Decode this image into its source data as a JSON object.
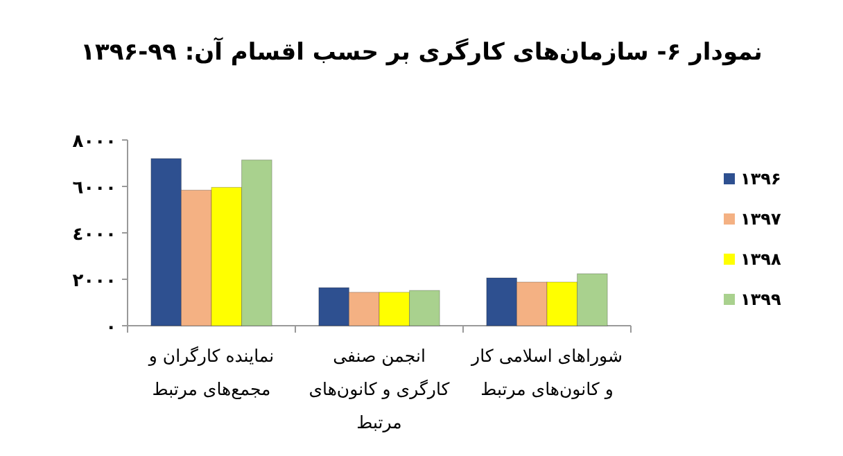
{
  "chart_data": {
    "type": "bar",
    "title": "نمودار ۶- سازمان‌های کارگری بر حسب اقسام آن: ۹۹-۱۳۹۶",
    "categories": [
      "نماینده کارگران و مجمع‌های مرتبط",
      "انجمن صنفی کارگری و کانون‌های مرتبط",
      "شوراهای اسلامی کار و کانون‌های مرتبط"
    ],
    "series": [
      {
        "name": "۱۳۹۶",
        "color": "#2e5090",
        "values": [
          7200,
          1640,
          2060
        ]
      },
      {
        "name": "۱۳۹۷",
        "color": "#f4b183",
        "values": [
          5840,
          1440,
          1880
        ]
      },
      {
        "name": "۱۳۹۸",
        "color": "#ffff00",
        "values": [
          5960,
          1440,
          1880
        ]
      },
      {
        "name": "۱۳۹۹",
        "color": "#a9d18e",
        "values": [
          7140,
          1520,
          2240
        ]
      }
    ],
    "ylim": [
      0,
      8000
    ],
    "yticks": [
      {
        "value": 0,
        "label": "٠"
      },
      {
        "value": 2000,
        "label": "٢٠٠٠"
      },
      {
        "value": 4000,
        "label": "٤٠٠٠"
      },
      {
        "value": 6000,
        "label": "٦٠٠٠"
      },
      {
        "value": 8000,
        "label": "٨٠٠٠"
      }
    ],
    "legend": "right"
  }
}
